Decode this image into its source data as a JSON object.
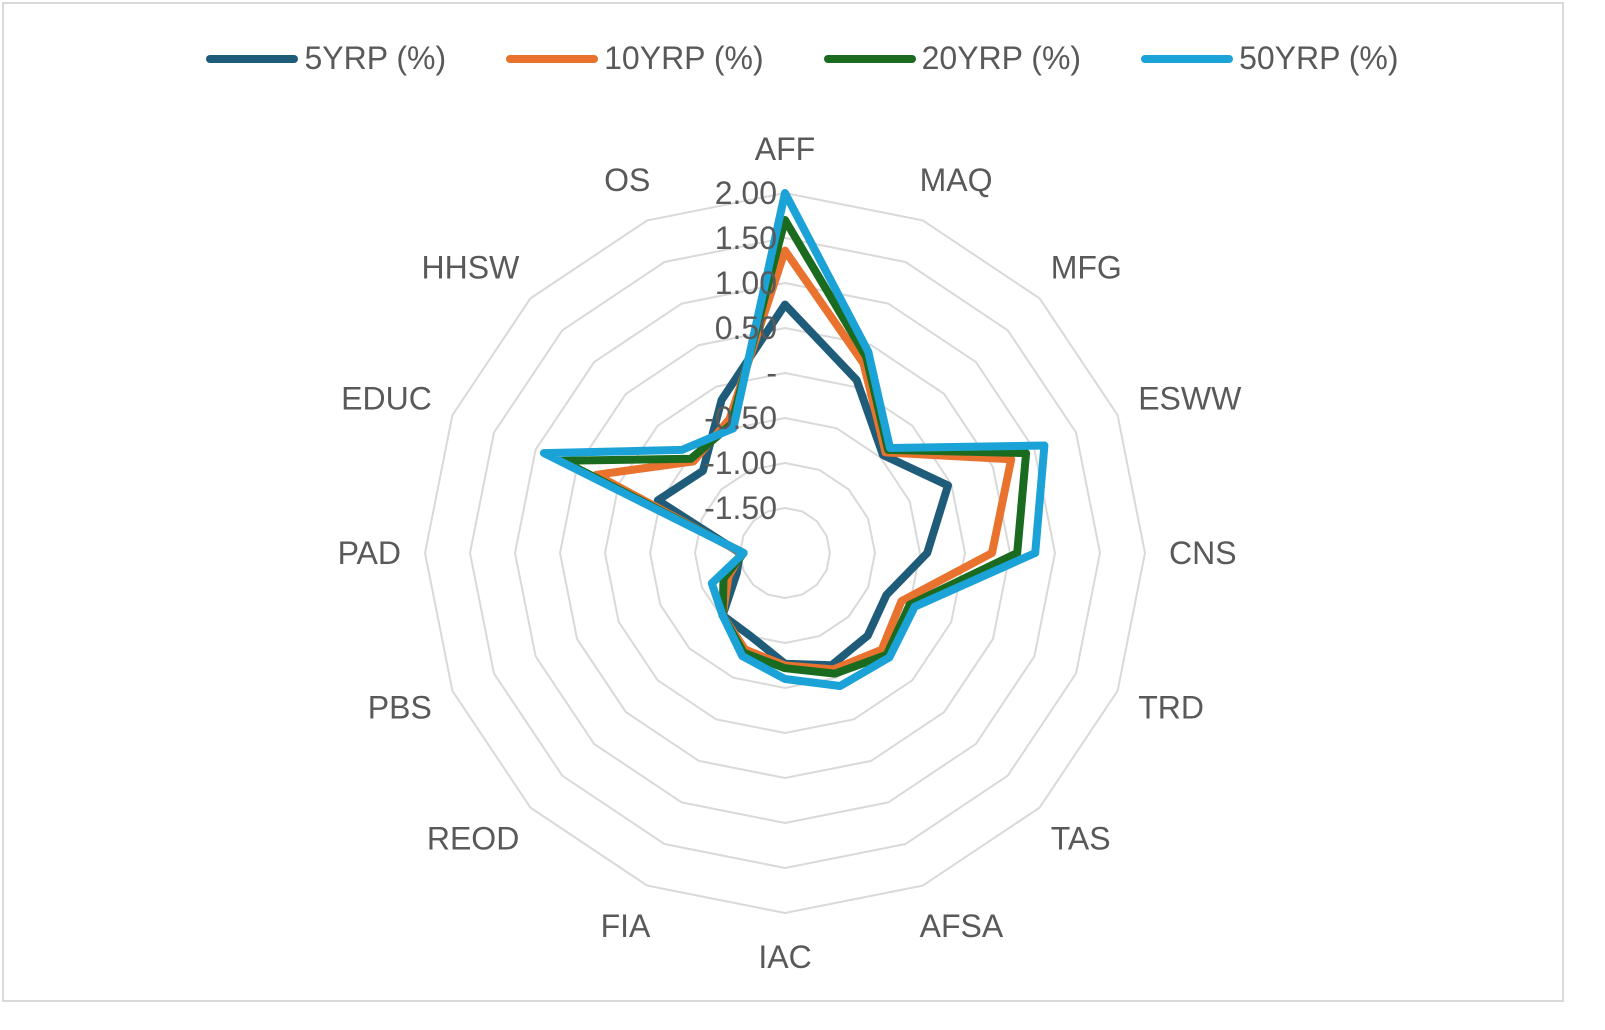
{
  "chart_data": {
    "type": "radar",
    "categories": [
      "AFF",
      "MAQ",
      "MFG",
      "ESWW",
      "CNS",
      "TRD",
      "TAS",
      "AFSA",
      "IAC",
      "FIA",
      "REOD",
      "PBS",
      "PAD",
      "EDUC",
      "HHSW",
      "OS"
    ],
    "rlim": [
      -2.0,
      2.0
    ],
    "ticks": [
      {
        "value": 2.0,
        "label": "2.00"
      },
      {
        "value": 1.5,
        "label": "1.50"
      },
      {
        "value": 1.0,
        "label": "1.00"
      },
      {
        "value": 0.5,
        "label": "0.50"
      },
      {
        "value": 0.0,
        "label": "-"
      },
      {
        "value": -0.5,
        "label": "-0.50"
      },
      {
        "value": -1.0,
        "label": "-1.00"
      },
      {
        "value": -1.5,
        "label": "-1.50"
      }
    ],
    "grid_rings": [
      -2.0,
      -1.5,
      -1.0,
      -0.5,
      0.0,
      0.5,
      1.0,
      1.5,
      2.0
    ],
    "legend_position": "top",
    "series": [
      {
        "name": "5YRP (%)",
        "color": "#1f5c7a",
        "values": [
          0.76,
          0.08,
          -0.46,
          -0.04,
          -0.42,
          -0.78,
          -0.7,
          -0.65,
          -0.77,
          -1.0,
          -1.02,
          -1.42,
          -1.5,
          -0.47,
          -0.71,
          -0.16
        ]
      },
      {
        "name": "10YRP (%)",
        "color": "#e8722e",
        "values": [
          1.36,
          0.28,
          -0.42,
          0.72,
          0.3,
          -0.6,
          -0.48,
          -0.6,
          -0.75,
          -0.84,
          -1.02,
          -1.32,
          -1.52,
          0.27,
          -0.56,
          -0.39
        ]
      },
      {
        "name": "20YRP (%)",
        "color": "#1a6b1f",
        "values": [
          1.7,
          0.36,
          -0.38,
          0.9,
          0.58,
          -0.5,
          -0.4,
          -0.55,
          -0.72,
          -0.8,
          -1.02,
          -1.26,
          -1.54,
          0.68,
          -0.52,
          -0.45
        ]
      },
      {
        "name": "50YRP (%)",
        "color": "#1ba3d8",
        "values": [
          2.0,
          0.42,
          -0.35,
          1.12,
          0.78,
          -0.44,
          -0.36,
          -0.4,
          -0.6,
          -0.76,
          -1.02,
          -1.12,
          -1.54,
          0.9,
          -0.38,
          -0.5
        ]
      }
    ]
  }
}
